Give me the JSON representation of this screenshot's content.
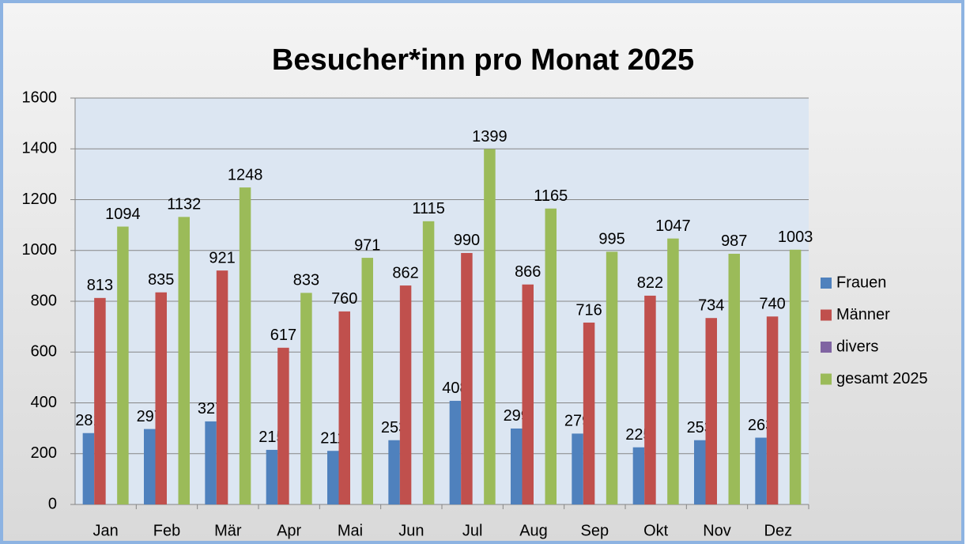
{
  "chart_data": {
    "type": "bar",
    "title": "Besucher*inn pro Monat 2025",
    "categories": [
      "Jan",
      "Feb",
      "Mär",
      "Apr",
      "Mai",
      "Jun",
      "Jul",
      "Aug",
      "Sep",
      "Okt",
      "Nov",
      "Dez"
    ],
    "series": [
      {
        "name": "Frauen",
        "color": "#4f81bd",
        "data_labels": true,
        "values": [
          281,
          297,
          327,
          215,
          211,
          253,
          408,
          299,
          279,
          225,
          253,
          263
        ]
      },
      {
        "name": "Männer",
        "color": "#c0504d",
        "data_labels": true,
        "values": [
          813,
          835,
          921,
          617,
          760,
          862,
          990,
          866,
          716,
          822,
          734,
          740
        ]
      },
      {
        "name": "divers",
        "color": "#8064a2",
        "data_labels": false,
        "values": [
          0,
          0,
          0,
          0,
          0,
          0,
          0,
          0,
          0,
          0,
          0,
          0
        ]
      },
      {
        "name": "gesamt 2025",
        "color": "#9bbb59",
        "data_labels": true,
        "values": [
          1094,
          1132,
          1248,
          833,
          971,
          1115,
          1399,
          1165,
          995,
          1047,
          987,
          1003
        ]
      }
    ],
    "ylim": [
      0,
      1600
    ],
    "yticks": [
      0,
      200,
      400,
      600,
      800,
      1000,
      1200,
      1400,
      1600
    ],
    "grid": true,
    "legend": "right"
  }
}
